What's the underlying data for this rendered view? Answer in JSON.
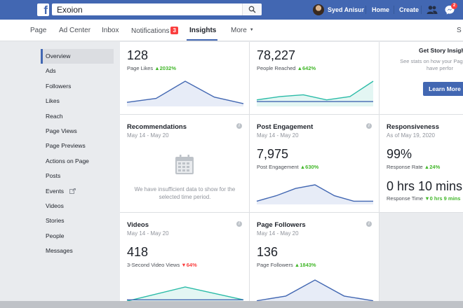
{
  "topbar": {
    "search_value": "Exoion",
    "user_name": "Syed Anisur",
    "home": "Home",
    "create": "Create",
    "messages_badge": "2",
    "icons": [
      "facebook-logo",
      "search-icon",
      "friends-icon",
      "messenger-icon"
    ]
  },
  "pagenav": {
    "items": [
      "Page",
      "Ad Center",
      "Inbox",
      "Notifications",
      "Insights",
      "More"
    ],
    "notifications_badge": "3",
    "settings_partial": "S"
  },
  "sidebar": {
    "items": [
      "Overview",
      "Ads",
      "Followers",
      "Likes",
      "Reach",
      "Page Views",
      "Page Previews",
      "Actions on Page",
      "Posts",
      "Events",
      "Videos",
      "Stories",
      "People",
      "Messages"
    ]
  },
  "cards": {
    "page_likes": {
      "value": "128",
      "label": "Page Likes",
      "change": "2032%",
      "trend": [
        2,
        5,
        18,
        6,
        1
      ]
    },
    "people_reached": {
      "value": "78,227",
      "label": "People Reached",
      "change": "642%",
      "trend_teal": [
        3,
        5,
        6,
        3,
        5,
        14
      ],
      "trend_blue": [
        2,
        2,
        2,
        2,
        2,
        2
      ]
    },
    "story": {
      "title": "Get Story Insigh",
      "desc": "See stats on how your Pag stories have perfor",
      "button": "Learn More"
    },
    "recommendations": {
      "title": "Recommendations",
      "date": "May 14 - May 20",
      "empty": "We have insufficient data to show for the selected time period."
    },
    "post_engagement": {
      "title": "Post Engagement",
      "date": "May 14 - May 20",
      "value": "7,975",
      "label": "Post Engagement",
      "change": "630%",
      "trend": [
        1,
        4,
        8,
        10,
        4,
        1,
        1
      ]
    },
    "responsiveness": {
      "title": "Responsiveness",
      "date": "As of May 19, 2020",
      "rate": "99%",
      "rate_label": "Response Rate",
      "rate_change": "24%",
      "time": "0 hrs 10 mins",
      "time_label": "Response Time",
      "time_change": "0 hrs 9 mins"
    },
    "videos": {
      "title": "Videos",
      "date": "May 14 - May 20",
      "value": "418",
      "label": "3-Second Video Views",
      "change": "64%",
      "trend_teal": [
        1,
        12,
        2
      ],
      "trend_blue": [
        2,
        2,
        2
      ]
    },
    "page_followers": {
      "title": "Page Followers",
      "date": "May 14 - May 20",
      "value": "136",
      "label": "Page Followers",
      "change": "1843%",
      "trend": [
        1,
        4,
        14,
        4,
        1
      ]
    }
  },
  "colors": {
    "brand": "#4267b2",
    "up": "#42b72a",
    "down": "#fa3e3e",
    "line_blue": "#4267b2",
    "line_teal": "#2abba7"
  }
}
